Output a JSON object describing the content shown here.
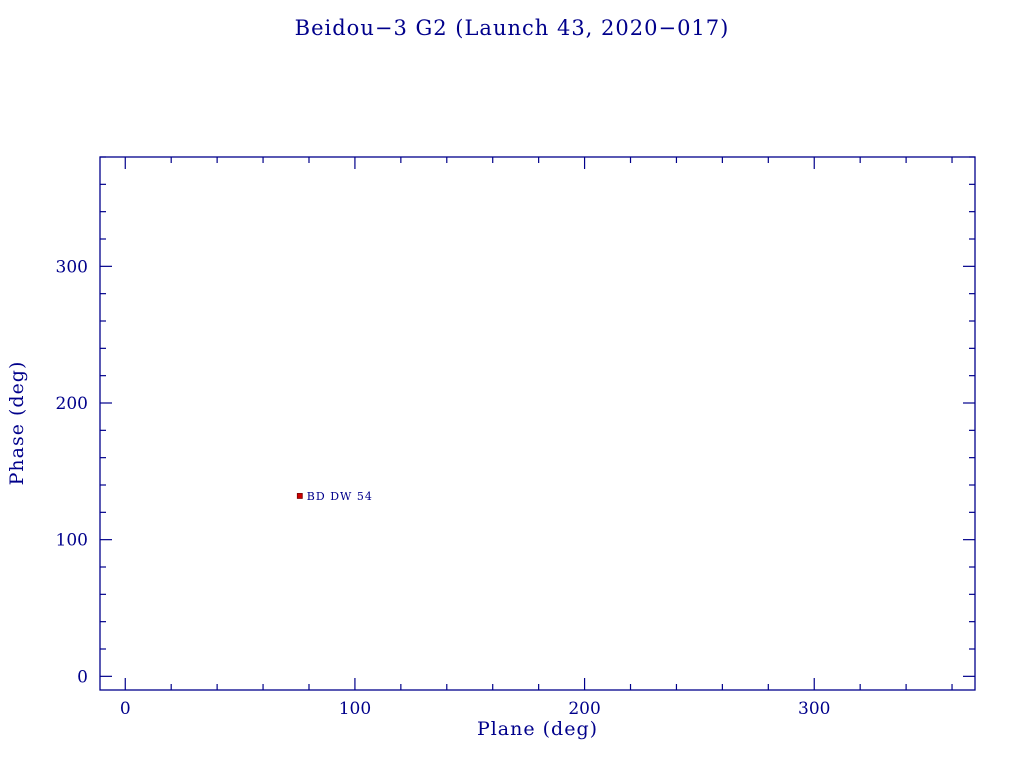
{
  "chart_data": {
    "type": "scatter",
    "title": "Beidou−3 G2 (Launch 43, 2020−017)",
    "xlabel": "Plane (deg)",
    "ylabel": "Phase (deg)",
    "xlim": [
      -11,
      370
    ],
    "ylim": [
      -10,
      380
    ],
    "x_major_ticks": [
      0,
      100,
      200,
      300
    ],
    "y_major_ticks": [
      0,
      100,
      200,
      300
    ],
    "minor_tick_step": 20,
    "grid": false,
    "legend": "none",
    "points": [
      {
        "x": 76,
        "y": 132,
        "label": "BD DW 54",
        "marker": "square",
        "color": "#cc0000"
      }
    ],
    "axis_color": "#00008b",
    "label_color": "#00008b",
    "background": "#ffffff"
  }
}
